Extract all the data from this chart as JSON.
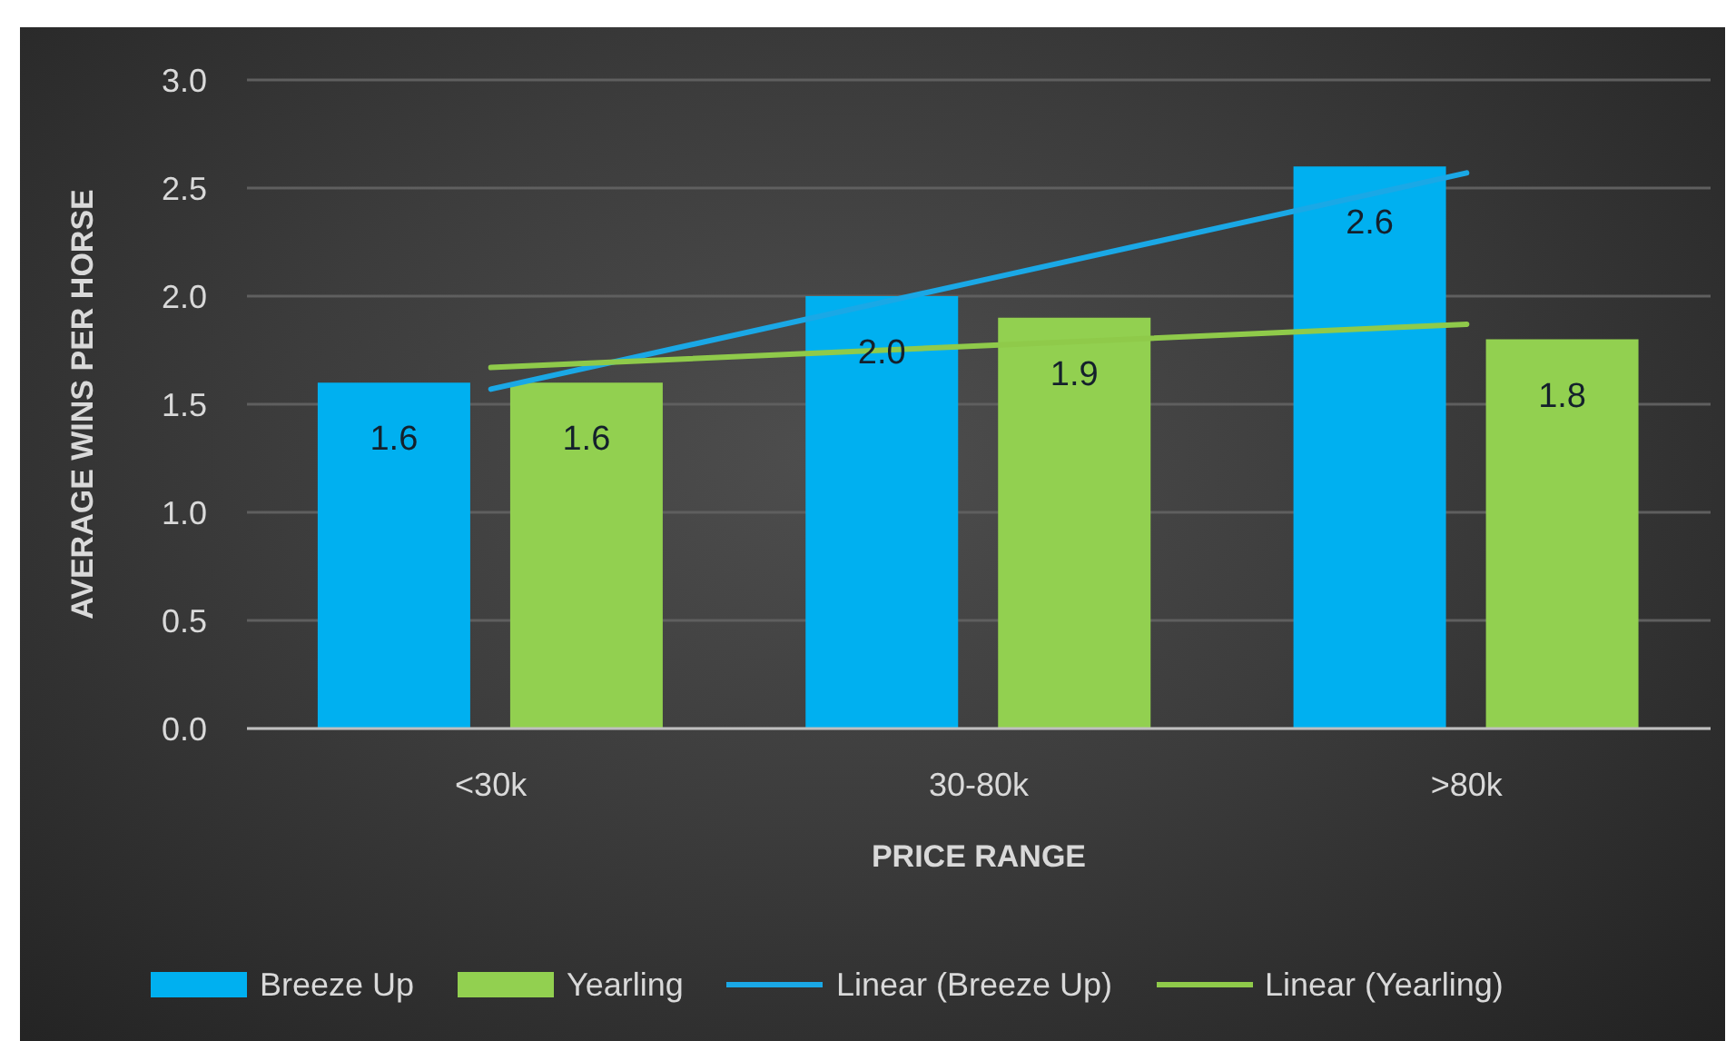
{
  "chart_data": {
    "type": "bar",
    "categories": [
      "<30k",
      "30-80k",
      ">80k"
    ],
    "xlabel": "PRICE RANGE",
    "ylabel": "AVERAGE WINS PER HORSE",
    "ylim": [
      0,
      3
    ],
    "yticks": [
      {
        "value": 0,
        "label": "0.0"
      },
      {
        "value": 0.5,
        "label": "0.5"
      },
      {
        "value": 1,
        "label": "1.0"
      },
      {
        "value": 1.5,
        "label": "1.5"
      },
      {
        "value": 2,
        "label": "2.0"
      },
      {
        "value": 2.5,
        "label": "2.5"
      },
      {
        "value": 3,
        "label": "3.0"
      }
    ],
    "grid": "y",
    "legend": "bottom",
    "marker": "none",
    "series": [
      {
        "name": "Breeze Up",
        "color": "#00b0f0",
        "values": [
          1.6,
          2.0,
          2.6
        ],
        "value_labels": [
          "1.6",
          "2.0",
          "2.6"
        ]
      },
      {
        "name": "Yearling",
        "color": "#92d050",
        "values": [
          1.6,
          1.9,
          1.8
        ],
        "value_labels": [
          "1.6",
          "1.9",
          "1.8"
        ]
      },
      {
        "name": "Linear (Breeze Up)",
        "type": "line",
        "color": "#1aa8e6",
        "values": [
          1.57,
          2.07,
          2.57
        ]
      },
      {
        "name": "Linear (Yearling)",
        "type": "line",
        "color": "#8fca4a",
        "values": [
          1.67,
          1.77,
          1.87
        ]
      }
    ]
  }
}
